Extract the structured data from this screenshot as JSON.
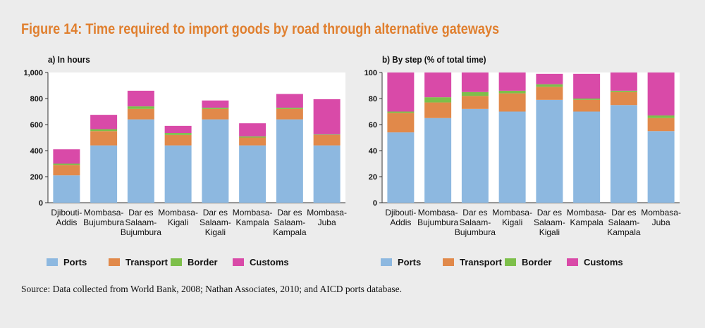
{
  "figure_title": "Figure 14: Time required to import goods by road through alternative gateways",
  "source": "Source: Data collected from World Bank, 2008; Nathan Associates, 2010; and AICD ports database.",
  "colors": {
    "Ports": "#8db8e0",
    "Transport": "#e1894a",
    "Border": "#7dbf4a",
    "Customs": "#d94aa8"
  },
  "chart_data": [
    {
      "type": "bar",
      "stacked": true,
      "title": "a) In hours",
      "categories": [
        [
          "Djibouti-",
          "Addis"
        ],
        [
          "Mombasa-",
          "Bujumbura"
        ],
        [
          "Dar es",
          "Salaam-",
          "Bujumbura"
        ],
        [
          "Mombasa-",
          "Kigali"
        ],
        [
          "Dar es",
          "Salaam-",
          "Kigali"
        ],
        [
          "Mombasa-",
          "Kampala"
        ],
        [
          "Dar es",
          "Salaam-",
          "Kampala"
        ],
        [
          "Mombasa-",
          "Juba"
        ]
      ],
      "ylim": [
        0,
        1000
      ],
      "yticks": [
        "0",
        "200",
        "400",
        "600",
        "800",
        "1,000"
      ],
      "series": [
        {
          "name": "Ports",
          "values": [
            210,
            440,
            640,
            440,
            640,
            440,
            640,
            440
          ]
        },
        {
          "name": "Transport",
          "values": [
            80,
            110,
            80,
            80,
            80,
            60,
            80,
            80
          ]
        },
        {
          "name": "Border",
          "values": [
            10,
            15,
            20,
            15,
            10,
            10,
            10,
            5
          ]
        },
        {
          "name": "Customs",
          "values": [
            110,
            110,
            120,
            55,
            55,
            100,
            105,
            270
          ]
        }
      ],
      "legend_position": "bottom"
    },
    {
      "type": "bar",
      "stacked": true,
      "title": "b) By step (% of total time)",
      "categories": [
        [
          "Djibouti-",
          "Addis"
        ],
        [
          "Mombasa-",
          "Bujumbura"
        ],
        [
          "Dar es",
          "Salaam-",
          "Bujumbura"
        ],
        [
          "Mombasa-",
          "Kigali"
        ],
        [
          "Dar es",
          "Salaam-",
          "Kigali"
        ],
        [
          "Mombasa-",
          "Kampala"
        ],
        [
          "Dar es",
          "Salaam-",
          "Kampala"
        ],
        [
          "Mombasa-",
          "Juba"
        ]
      ],
      "ylim": [
        0,
        100
      ],
      "yticks": [
        "0",
        "20",
        "40",
        "60",
        "80",
        "100"
      ],
      "series": [
        {
          "name": "Ports",
          "values": [
            54,
            65,
            72,
            70,
            79,
            70,
            75,
            55
          ]
        },
        {
          "name": "Transport",
          "values": [
            15,
            12,
            10,
            14,
            10,
            9,
            10,
            10
          ]
        },
        {
          "name": "Border",
          "values": [
            1,
            4,
            3,
            2,
            2,
            1,
            1,
            2
          ]
        },
        {
          "name": "Customs",
          "values": [
            30,
            19,
            15,
            14,
            8,
            19,
            14,
            33
          ]
        }
      ],
      "legend_position": "bottom"
    }
  ]
}
